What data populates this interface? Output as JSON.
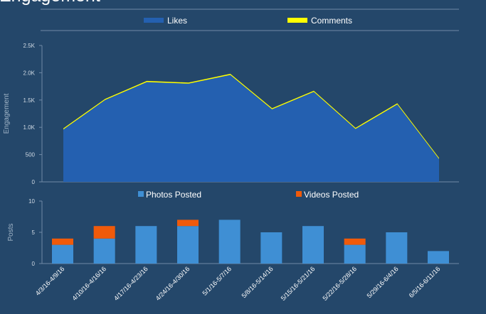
{
  "page": {
    "title": "Engagement"
  },
  "colors": {
    "background": "#24476a",
    "likes": "#2460b0",
    "comments": "#ffff00",
    "photos": "#3f8fd4",
    "videos": "#f05a0a",
    "axis": "#6f8aa6",
    "tick_text": "#cfd9e3",
    "axis_title": "#9fb3c6"
  },
  "chart_data": [
    {
      "type": "area",
      "ylabel": "Engagement",
      "ylim": [
        0,
        2500
      ],
      "yticks": [
        0,
        500,
        1000,
        1500,
        2000,
        2500
      ],
      "ytick_labels": [
        "0",
        "500",
        "1.0K",
        "1.5K",
        "2.0K",
        "2.5K"
      ],
      "legend": {
        "placement": "top",
        "entries": [
          "Likes",
          "Comments"
        ]
      },
      "series": [
        {
          "name": "Likes",
          "values": [
            960,
            1500,
            1830,
            1800,
            1960,
            1330,
            1650,
            970,
            1420,
            420
          ]
        },
        {
          "name": "Comments",
          "values": [
            20,
            20,
            20,
            20,
            20,
            20,
            20,
            20,
            20,
            20
          ]
        }
      ]
    },
    {
      "type": "bar",
      "stacked": true,
      "ylabel": "Posts",
      "ylim": [
        0,
        10
      ],
      "yticks": [
        0,
        5,
        10
      ],
      "categories": [
        "4/3/16-4/9/16",
        "4/10/16-4/16/16",
        "4/17/16-4/23/16",
        "4/24/16-4/30/16",
        "5/1/16-5/7/16",
        "5/8/16-5/14/16",
        "5/15/16-5/21/16",
        "5/22/16-5/28/16",
        "5/29/16-6/4/16",
        "6/5/16-6/11/16"
      ],
      "legend": {
        "placement": "top",
        "entries": [
          "Photos Posted",
          "Videos Posted"
        ]
      },
      "series": [
        {
          "name": "Photos Posted",
          "values": [
            3,
            4,
            6,
            6,
            7,
            5,
            6,
            3,
            5,
            2
          ]
        },
        {
          "name": "Videos Posted",
          "values": [
            1,
            2,
            0,
            1,
            0,
            0,
            0,
            1,
            0,
            0
          ]
        }
      ]
    }
  ]
}
